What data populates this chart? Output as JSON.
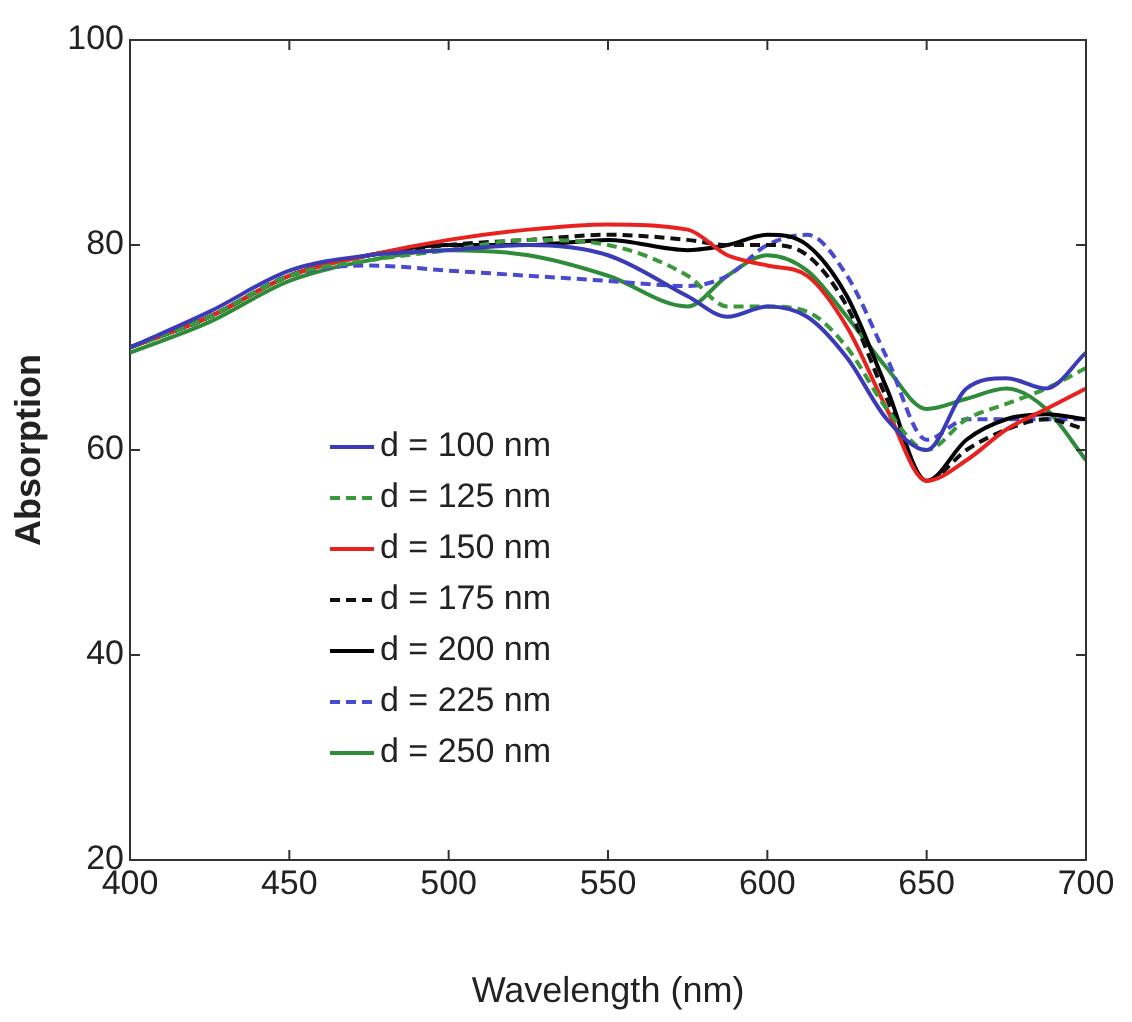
{
  "chart_data": {
    "type": "line",
    "xlabel": "Wavelength (nm)",
    "ylabel": "Absorption",
    "xlim": [
      400,
      700
    ],
    "ylim": [
      20,
      100
    ],
    "xticks": [
      400,
      450,
      500,
      550,
      600,
      650,
      700
    ],
    "yticks": [
      20,
      40,
      60,
      80,
      100
    ],
    "grid": false,
    "legend": "left",
    "marker": "none",
    "x": [
      400,
      425,
      450,
      475,
      500,
      525,
      550,
      575,
      587.5,
      600,
      612.5,
      625,
      637.5,
      650,
      662.5,
      675,
      687.5,
      700
    ],
    "series": [
      {
        "name": "d = 100 nm",
        "color": "#3b3bb8",
        "line_style": "solid",
        "values": [
          70,
          73.5,
          77.5,
          79,
          79.5,
          80,
          79,
          75,
          73,
          74,
          73,
          69,
          63,
          60,
          66,
          67,
          66,
          69.5
        ]
      },
      {
        "name": "d = 125 nm",
        "color": "#3a9a3a",
        "line_style": "dashed",
        "values": [
          70,
          73,
          77,
          78.5,
          79.5,
          80.5,
          80,
          77,
          74,
          74,
          73.5,
          70,
          64,
          60,
          63,
          64.5,
          66,
          68
        ]
      },
      {
        "name": "d = 150 nm",
        "color": "#e8231f",
        "line_style": "solid",
        "values": [
          70,
          73,
          77,
          79,
          80.5,
          81.5,
          82,
          81.5,
          79,
          78,
          77,
          72,
          64,
          57,
          59,
          62,
          64,
          66
        ]
      },
      {
        "name": "d = 175 nm",
        "color": "#111111",
        "line_style": "dashed",
        "values": [
          70,
          73,
          77,
          79,
          80,
          80.5,
          81,
          80.5,
          80,
          80,
          79,
          74,
          65,
          57,
          60,
          62,
          63,
          62
        ]
      },
      {
        "name": "d = 200 nm",
        "color": "#000000",
        "line_style": "solid",
        "values": [
          70,
          73,
          77,
          79,
          80,
          80,
          80.5,
          79.5,
          80,
          81,
          80,
          75,
          66,
          57,
          61,
          63,
          63.5,
          63
        ]
      },
      {
        "name": "d = 225 nm",
        "color": "#4a4ad0",
        "line_style": "dashed",
        "values": [
          70,
          73,
          77,
          78,
          77.5,
          77,
          76.5,
          76,
          77,
          80,
          81,
          77,
          69,
          61,
          63,
          63,
          63,
          63
        ]
      },
      {
        "name": "d = 250 nm",
        "color": "#2e8b3a",
        "line_style": "solid",
        "values": [
          69.5,
          72.5,
          76.5,
          78.5,
          79.5,
          79,
          77,
          74,
          77,
          79,
          77.5,
          73,
          68,
          64,
          65,
          66,
          64,
          59
        ]
      }
    ]
  }
}
